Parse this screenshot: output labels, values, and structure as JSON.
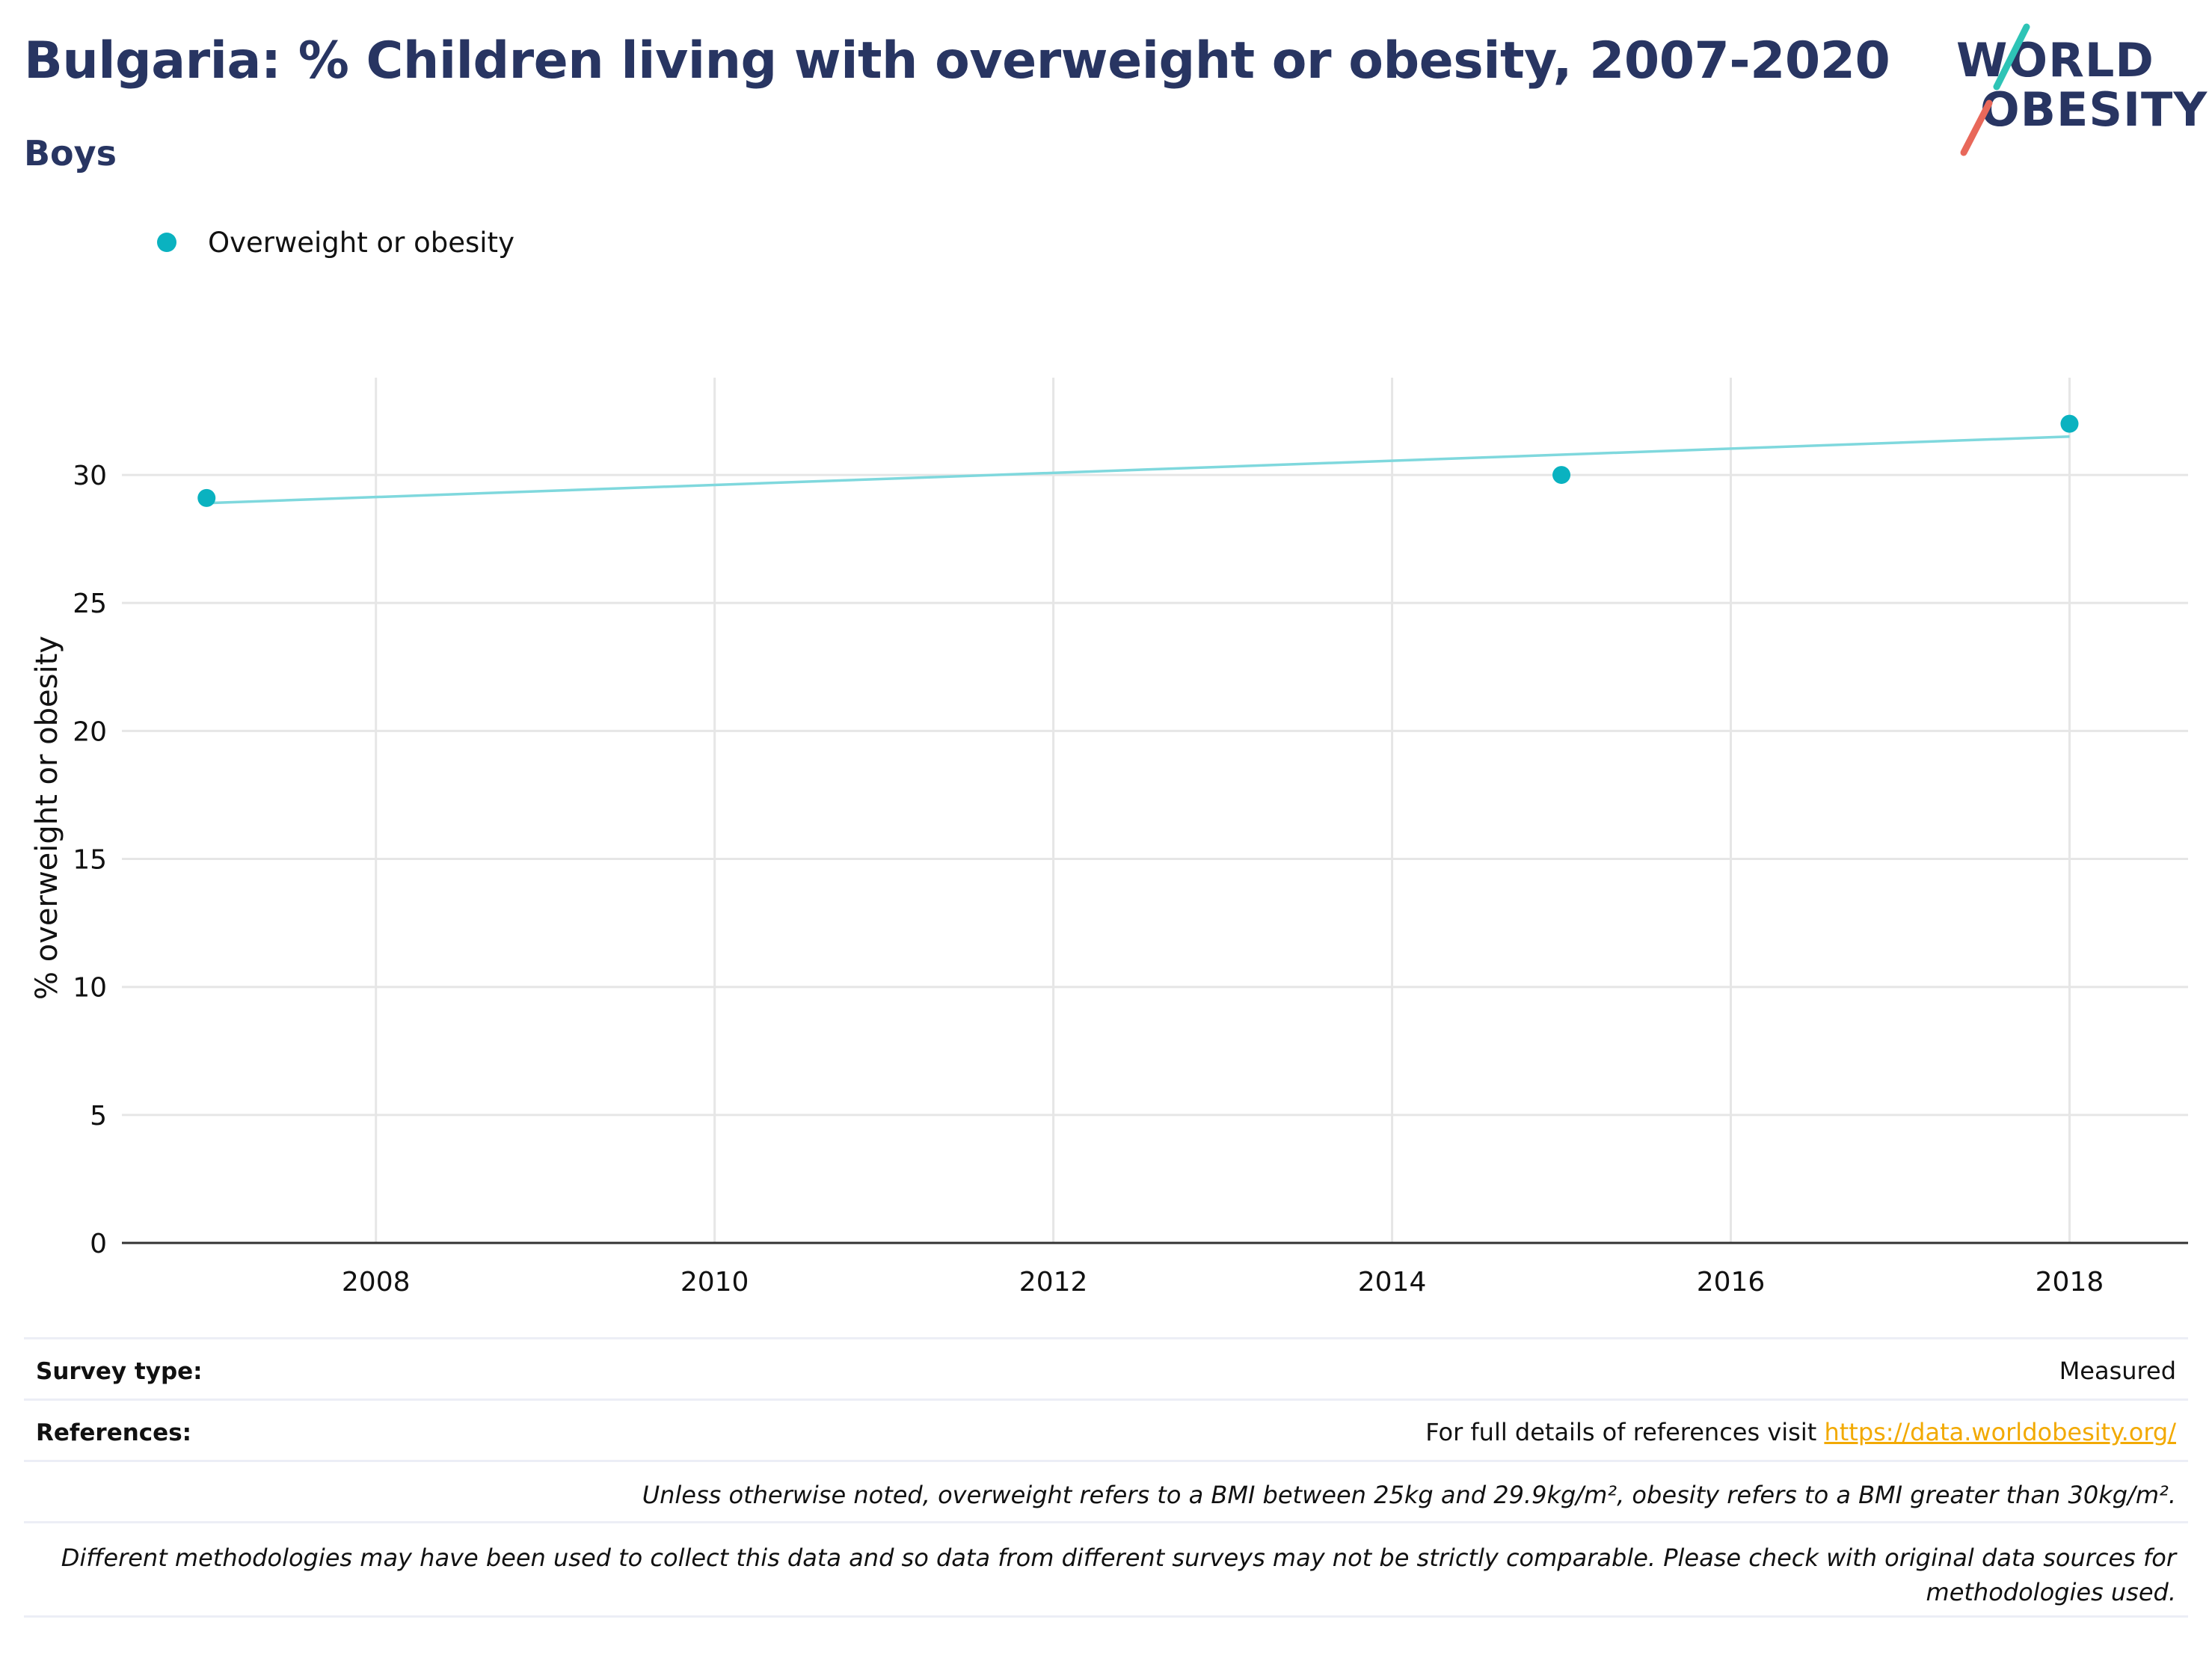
{
  "header": {
    "title": "Bulgaria: % Children living with overweight or obesity, 2007-2020",
    "subtitle": "Boys",
    "logo_line1": "WORLD",
    "logo_line2": "OBESITY"
  },
  "legend": {
    "label": "Overweight or obesity",
    "color": "#0ab2c0"
  },
  "chart_data": {
    "type": "scatter",
    "title": "Bulgaria: % Children living with overweight or obesity, 2007-2020",
    "subtitle": "Boys",
    "xlabel": "",
    "ylabel": "% overweight or obesity",
    "xlim": [
      2006.5,
      2018.7
    ],
    "ylim": [
      0,
      33.8
    ],
    "xticks": [
      2008,
      2010,
      2012,
      2014,
      2016,
      2018
    ],
    "yticks": [
      0,
      5,
      10,
      15,
      20,
      25,
      30
    ],
    "grid": true,
    "legend_position": "top-left",
    "series": [
      {
        "name": "Overweight or obesity",
        "color": "#0ab2c0",
        "x": [
          2007,
          2015,
          2018
        ],
        "y": [
          29.1,
          30.0,
          32.0
        ]
      }
    ],
    "trendline": {
      "color": "#7fd8dd",
      "x": [
        2007,
        2018
      ],
      "y": [
        28.9,
        31.5
      ]
    }
  },
  "footer": {
    "survey_type_label": "Survey type:",
    "survey_type_value": "Measured",
    "references_label": "References:",
    "references_text": "For full details of references visit ",
    "references_link": "https://data.worldobesity.org/",
    "note1": "Unless otherwise noted, overweight refers to a BMI between 25kg and 29.9kg/m², obesity refers to a BMI greater than 30kg/m².",
    "note2": "Different methodologies may have been used to collect this data and so data from different surveys may not be strictly comparable. Please check with original data sources for methodologies used."
  }
}
